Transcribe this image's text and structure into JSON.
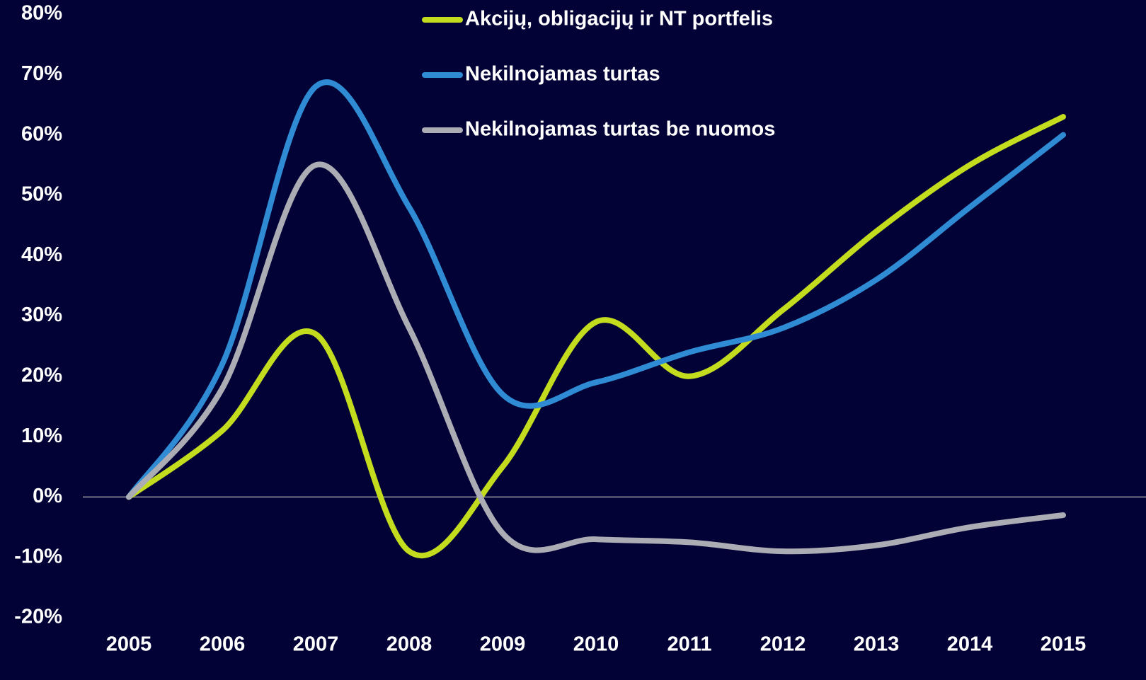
{
  "chart_data": {
    "type": "line",
    "x": [
      2005,
      2006,
      2007,
      2008,
      2009,
      2010,
      2011,
      2012,
      2013,
      2014,
      2015
    ],
    "series": [
      {
        "name": "Akcijų, obligacijų ir NT portfelis",
        "color": "#c3dd1e",
        "values": [
          0,
          11,
          27,
          -9,
          5,
          29,
          20,
          31,
          44,
          55,
          63
        ]
      },
      {
        "name": "Nekilnojamas turtas",
        "color": "#2f8bd4",
        "values": [
          0,
          22,
          68,
          48,
          17,
          19,
          24,
          28,
          36,
          48,
          60
        ]
      },
      {
        "name": "Nekilnojamas turtas be nuomos",
        "color": "#acacb4",
        "values": [
          0,
          18,
          55,
          28,
          -6,
          -7,
          -7.5,
          -9,
          -8,
          -5,
          -3
        ]
      }
    ],
    "xlim": [
      2005,
      2015
    ],
    "ylim": [
      -20,
      80
    ],
    "yticks": [
      {
        "value": -20,
        "label": "-20%"
      },
      {
        "value": -10,
        "label": "-10%"
      },
      {
        "value": 0,
        "label": "0%"
      },
      {
        "value": 10,
        "label": "10%"
      },
      {
        "value": 20,
        "label": "20%"
      },
      {
        "value": 30,
        "label": "30%"
      },
      {
        "value": 40,
        "label": "40%"
      },
      {
        "value": 50,
        "label": "50%"
      },
      {
        "value": 60,
        "label": "60%"
      },
      {
        "value": 70,
        "label": "70%"
      },
      {
        "value": 80,
        "label": "80%"
      }
    ],
    "grid": false,
    "legend": "top"
  }
}
